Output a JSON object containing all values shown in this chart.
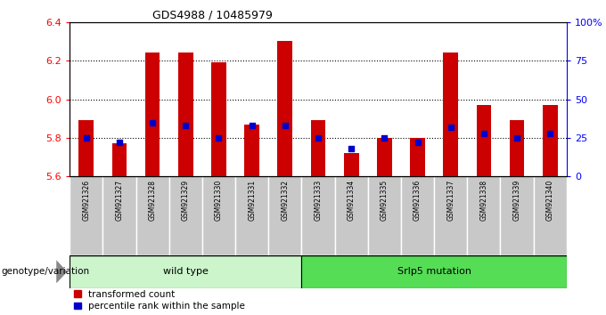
{
  "title": "GDS4988 / 10485979",
  "samples": [
    "GSM921326",
    "GSM921327",
    "GSM921328",
    "GSM921329",
    "GSM921330",
    "GSM921331",
    "GSM921332",
    "GSM921333",
    "GSM921334",
    "GSM921335",
    "GSM921336",
    "GSM921337",
    "GSM921338",
    "GSM921339",
    "GSM921340"
  ],
  "transformed_count": [
    5.89,
    5.77,
    6.24,
    6.24,
    6.19,
    5.87,
    6.3,
    5.89,
    5.72,
    5.8,
    5.8,
    6.24,
    5.97,
    5.89,
    5.97
  ],
  "percentile_rank": [
    25,
    22,
    35,
    33,
    25,
    33,
    33,
    25,
    18,
    25,
    22,
    32,
    28,
    25,
    28
  ],
  "group_labels": [
    "wild type",
    "Srlp5 mutation"
  ],
  "group_starts": [
    0,
    7
  ],
  "group_ends": [
    7,
    15
  ],
  "group_colors": [
    "#ccf5cc",
    "#55dd55"
  ],
  "ylim_left": [
    5.6,
    6.4
  ],
  "ylim_right": [
    0,
    100
  ],
  "bar_color": "#cc0000",
  "dot_color": "#0000cc",
  "grid_values": [
    5.8,
    6.0,
    6.2
  ],
  "yticks_left": [
    5.6,
    5.8,
    6.0,
    6.2,
    6.4
  ],
  "yticks_right": [
    0,
    25,
    50,
    75,
    100
  ],
  "legend_labels": [
    "transformed count",
    "percentile rank within the sample"
  ],
  "genotype_label": "genotype/variation"
}
